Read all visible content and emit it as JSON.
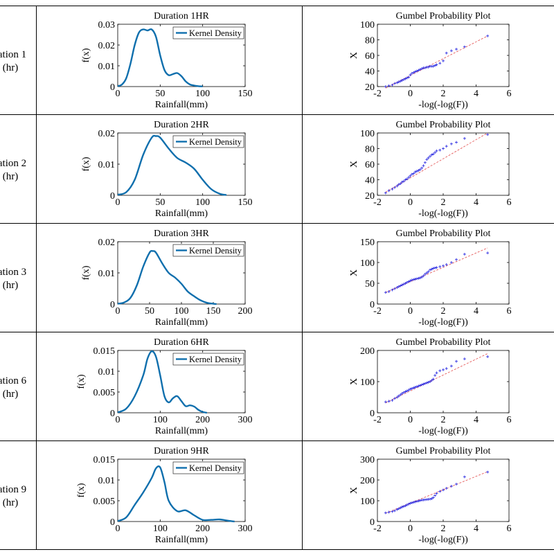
{
  "rows": [
    {
      "row_label": "ration 1",
      "row_unit": "(hr)",
      "kde": {
        "type": "line",
        "title": "Duration 1HR",
        "xlabel": "Rainfall(mm)",
        "ylabel": "f(x)",
        "legend": "Kernel Density",
        "xlim": [
          0,
          150
        ],
        "ylim": [
          0,
          0.03
        ],
        "xticks": [
          0,
          50,
          100,
          150
        ],
        "yticks": [
          0,
          0.01,
          0.02,
          0.03
        ],
        "ytick_labels": [
          "0",
          "0.01",
          "0.02",
          "0.03"
        ],
        "x": [
          0,
          5,
          10,
          15,
          20,
          25,
          30,
          35,
          40,
          45,
          50,
          55,
          60,
          65,
          70,
          75,
          80,
          85,
          90,
          95,
          100
        ],
        "y": [
          0.0002,
          0.001,
          0.004,
          0.011,
          0.02,
          0.026,
          0.0275,
          0.027,
          0.0275,
          0.024,
          0.015,
          0.008,
          0.0055,
          0.006,
          0.0065,
          0.005,
          0.0025,
          0.001,
          0.0005,
          0.0002,
          0.0001
        ]
      },
      "gumbel": {
        "type": "scatter",
        "title": "Gumbel Probability Plot",
        "xlabel": "-log(-log(F))",
        "ylabel": "X",
        "xlim": [
          -2,
          6
        ],
        "ylim": [
          20,
          100
        ],
        "xticks": [
          -2,
          0,
          2,
          4,
          6
        ],
        "yticks": [
          20,
          40,
          60,
          80,
          100
        ],
        "fit_line": {
          "x": [
            -1.5,
            4.7
          ],
          "y": [
            18,
            85
          ]
        },
        "points": {
          "x": [
            -1.5,
            -1.3,
            -1.1,
            -0.95,
            -0.8,
            -0.7,
            -0.6,
            -0.5,
            -0.4,
            -0.3,
            -0.2,
            -0.1,
            0.0,
            0.1,
            0.2,
            0.3,
            0.4,
            0.5,
            0.6,
            0.7,
            0.8,
            0.9,
            1.0,
            1.1,
            1.2,
            1.3,
            1.4,
            1.5,
            1.6,
            1.8,
            2.0,
            2.2,
            2.5,
            2.8,
            3.3,
            4.7
          ],
          "y": [
            20,
            21,
            22,
            24,
            25,
            26,
            27,
            28,
            29,
            30,
            31,
            32,
            35,
            37,
            38,
            39,
            40,
            41,
            42,
            43,
            44,
            44,
            45,
            45,
            46,
            46,
            46,
            47,
            48,
            50,
            53,
            63,
            66,
            68,
            71,
            85
          ]
        }
      }
    },
    {
      "row_label": "ration 2",
      "row_unit": "(hr)",
      "kde": {
        "type": "line",
        "title": "Duration 2HR",
        "xlabel": "Rainfall(mm)",
        "ylabel": "f(x)",
        "legend": "Kernel Density",
        "xlim": [
          0,
          150
        ],
        "ylim": [
          0,
          0.02
        ],
        "xticks": [
          0,
          50,
          100,
          150
        ],
        "yticks": [
          0,
          0.01,
          0.02
        ],
        "ytick_labels": [
          "0",
          "0.01",
          "0.02"
        ],
        "x": [
          0,
          10,
          20,
          30,
          40,
          45,
          50,
          60,
          70,
          80,
          90,
          100,
          110,
          120,
          128
        ],
        "y": [
          0.0002,
          0.001,
          0.005,
          0.013,
          0.0185,
          0.019,
          0.0185,
          0.015,
          0.012,
          0.0105,
          0.0085,
          0.005,
          0.002,
          0.0005,
          0.0001
        ]
      },
      "gumbel": {
        "type": "scatter",
        "title": "Gumbel Probability Plot",
        "xlabel": "-log(-log(F))",
        "ylabel": "X",
        "xlim": [
          -2,
          6
        ],
        "ylim": [
          20,
          100
        ],
        "xticks": [
          -2,
          0,
          2,
          4,
          6
        ],
        "yticks": [
          20,
          40,
          60,
          80,
          100
        ],
        "fit_line": {
          "x": [
            -1.5,
            4.7
          ],
          "y": [
            24,
            100
          ]
        },
        "points": {
          "x": [
            -1.5,
            -1.3,
            -1.1,
            -0.95,
            -0.8,
            -0.7,
            -0.6,
            -0.5,
            -0.4,
            -0.3,
            -0.2,
            -0.1,
            0.0,
            0.1,
            0.2,
            0.3,
            0.4,
            0.5,
            0.6,
            0.7,
            0.8,
            0.9,
            1.0,
            1.1,
            1.2,
            1.3,
            1.4,
            1.5,
            1.6,
            1.8,
            2.0,
            2.2,
            2.5,
            2.8,
            3.3,
            4.7
          ],
          "y": [
            23,
            26,
            28,
            30,
            32,
            34,
            35,
            37,
            38,
            40,
            41,
            43,
            45,
            47,
            48,
            50,
            51,
            52,
            53,
            55,
            58,
            62,
            66,
            68,
            70,
            72,
            73,
            75,
            77,
            78,
            80,
            83,
            86,
            88,
            93,
            98
          ]
        }
      }
    },
    {
      "row_label": "ration 3",
      "row_unit": "(hr)",
      "kde": {
        "type": "line",
        "title": "Duration 3HR",
        "xlabel": "Rainfall(mm)",
        "ylabel": "f(x)",
        "legend": "Kernel Density",
        "xlim": [
          0,
          200
        ],
        "ylim": [
          0,
          0.02
        ],
        "xticks": [
          0,
          50,
          100,
          150,
          200
        ],
        "yticks": [
          0,
          0.01,
          0.02
        ],
        "ytick_labels": [
          "0",
          "0.01",
          "0.02"
        ],
        "x": [
          0,
          10,
          20,
          30,
          40,
          50,
          55,
          60,
          70,
          80,
          90,
          100,
          110,
          120,
          130,
          140,
          150,
          155
        ],
        "y": [
          0.0001,
          0.0005,
          0.002,
          0.006,
          0.012,
          0.0165,
          0.017,
          0.0165,
          0.013,
          0.01,
          0.0085,
          0.0065,
          0.004,
          0.0025,
          0.0012,
          0.0004,
          0.0001,
          0.0
        ]
      },
      "gumbel": {
        "type": "scatter",
        "title": "Gumbel Probability Plot",
        "xlabel": "-log(-log(F))",
        "ylabel": "X",
        "xlim": [
          -2,
          6
        ],
        "ylim": [
          0,
          150
        ],
        "xticks": [
          -2,
          0,
          2,
          4,
          6
        ],
        "yticks": [
          0,
          50,
          100,
          150
        ],
        "fit_line": {
          "x": [
            -1.5,
            4.7
          ],
          "y": [
            28,
            135
          ]
        },
        "points": {
          "x": [
            -1.5,
            -1.3,
            -1.1,
            -0.95,
            -0.8,
            -0.7,
            -0.6,
            -0.5,
            -0.4,
            -0.3,
            -0.2,
            -0.1,
            0.0,
            0.1,
            0.2,
            0.3,
            0.4,
            0.5,
            0.6,
            0.7,
            0.8,
            0.9,
            1.0,
            1.1,
            1.2,
            1.3,
            1.4,
            1.5,
            1.6,
            1.8,
            2.0,
            2.2,
            2.5,
            2.8,
            3.3,
            4.7
          ],
          "y": [
            28,
            30,
            34,
            37,
            40,
            42,
            44,
            46,
            48,
            50,
            52,
            54,
            56,
            58,
            59,
            60,
            61,
            62,
            63,
            65,
            68,
            72,
            75,
            78,
            82,
            84,
            86,
            87,
            88,
            90,
            92,
            95,
            100,
            107,
            120,
            123
          ]
        }
      }
    },
    {
      "row_label": "ration 6",
      "row_unit": "(hr)",
      "kde": {
        "type": "line",
        "title": "Duration 6HR",
        "xlabel": "Rainfall(mm)",
        "ylabel": "f(x)",
        "legend": "Kernel Density",
        "xlim": [
          0,
          300
        ],
        "ylim": [
          0,
          0.015
        ],
        "xticks": [
          0,
          100,
          200,
          300
        ],
        "yticks": [
          0,
          0.005,
          0.01,
          0.015
        ],
        "ytick_labels": [
          "0",
          "0.005",
          "0.01",
          "0.015"
        ],
        "x": [
          0,
          20,
          40,
          60,
          70,
          80,
          90,
          100,
          110,
          120,
          130,
          140,
          150,
          160,
          170,
          180,
          190,
          200,
          210
        ],
        "y": [
          0.0001,
          0.001,
          0.004,
          0.009,
          0.013,
          0.0148,
          0.0135,
          0.009,
          0.004,
          0.0025,
          0.0035,
          0.004,
          0.0028,
          0.0016,
          0.0018,
          0.0015,
          0.0007,
          0.0002,
          0.0
        ]
      },
      "gumbel": {
        "type": "scatter",
        "title": "Gumbel Probability Plot",
        "xlabel": "-log(-log(F))",
        "ylabel": "X",
        "xlim": [
          -2,
          6
        ],
        "ylim": [
          0,
          200
        ],
        "xticks": [
          -2,
          0,
          2,
          4,
          6
        ],
        "yticks": [
          0,
          100,
          200
        ],
        "fit_line": {
          "x": [
            -1.5,
            4.7
          ],
          "y": [
            32,
            190
          ]
        },
        "points": {
          "x": [
            -1.5,
            -1.3,
            -1.1,
            -0.95,
            -0.8,
            -0.7,
            -0.6,
            -0.5,
            -0.4,
            -0.3,
            -0.2,
            -0.1,
            0.0,
            0.1,
            0.2,
            0.3,
            0.4,
            0.5,
            0.6,
            0.7,
            0.8,
            0.9,
            1.0,
            1.1,
            1.2,
            1.3,
            1.4,
            1.5,
            1.6,
            1.8,
            2.0,
            2.2,
            2.5,
            2.8,
            3.3,
            4.7
          ],
          "y": [
            35,
            37,
            40,
            46,
            50,
            54,
            58,
            62,
            65,
            68,
            70,
            73,
            76,
            78,
            80,
            82,
            84,
            86,
            88,
            90,
            92,
            94,
            96,
            98,
            100,
            104,
            108,
            120,
            128,
            135,
            138,
            142,
            150,
            165,
            173,
            180
          ]
        }
      }
    },
    {
      "row_label": "ration 9",
      "row_unit": "(hr)",
      "kde": {
        "type": "line",
        "title": "Duration 9HR",
        "xlabel": "Rainfall(mm)",
        "ylabel": "f(x)",
        "legend": "Kernel Density",
        "xlim": [
          0,
          300
        ],
        "ylim": [
          0,
          0.015
        ],
        "xticks": [
          0,
          100,
          200,
          300
        ],
        "yticks": [
          0,
          0.005,
          0.01,
          0.015
        ],
        "ytick_labels": [
          "0",
          "0.005",
          "0.01",
          "0.015"
        ],
        "x": [
          0,
          20,
          40,
          60,
          80,
          90,
          100,
          110,
          120,
          140,
          160,
          180,
          200,
          220,
          240,
          260,
          275
        ],
        "y": [
          0.0001,
          0.001,
          0.004,
          0.007,
          0.0105,
          0.0128,
          0.013,
          0.0095,
          0.005,
          0.0025,
          0.0027,
          0.0015,
          0.0004,
          0.0004,
          0.0005,
          0.0002,
          0.0
        ]
      },
      "gumbel": {
        "type": "scatter",
        "title": "Gumbel Probability Plot",
        "xlabel": "-log(-log(F))",
        "ylabel": "X",
        "xlim": [
          -2,
          6
        ],
        "ylim": [
          0,
          300
        ],
        "xticks": [
          -2,
          0,
          2,
          4,
          6
        ],
        "yticks": [
          0,
          100,
          200,
          300
        ],
        "fit_line": {
          "x": [
            -1.5,
            4.7
          ],
          "y": [
            40,
            240
          ]
        },
        "points": {
          "x": [
            -1.5,
            -1.3,
            -1.1,
            -0.95,
            -0.8,
            -0.7,
            -0.6,
            -0.5,
            -0.4,
            -0.3,
            -0.2,
            -0.1,
            0.0,
            0.1,
            0.2,
            0.3,
            0.4,
            0.5,
            0.6,
            0.7,
            0.8,
            0.9,
            1.0,
            1.1,
            1.2,
            1.3,
            1.4,
            1.5,
            1.6,
            1.8,
            2.0,
            2.2,
            2.5,
            2.8,
            3.3,
            4.7
          ],
          "y": [
            42,
            45,
            48,
            52,
            58,
            62,
            66,
            70,
            73,
            76,
            80,
            84,
            88,
            90,
            93,
            95,
            97,
            99,
            101,
            103,
            104,
            105,
            106,
            107,
            108,
            110,
            115,
            125,
            135,
            145,
            152,
            160,
            170,
            180,
            215,
            238
          ]
        }
      }
    }
  ]
}
